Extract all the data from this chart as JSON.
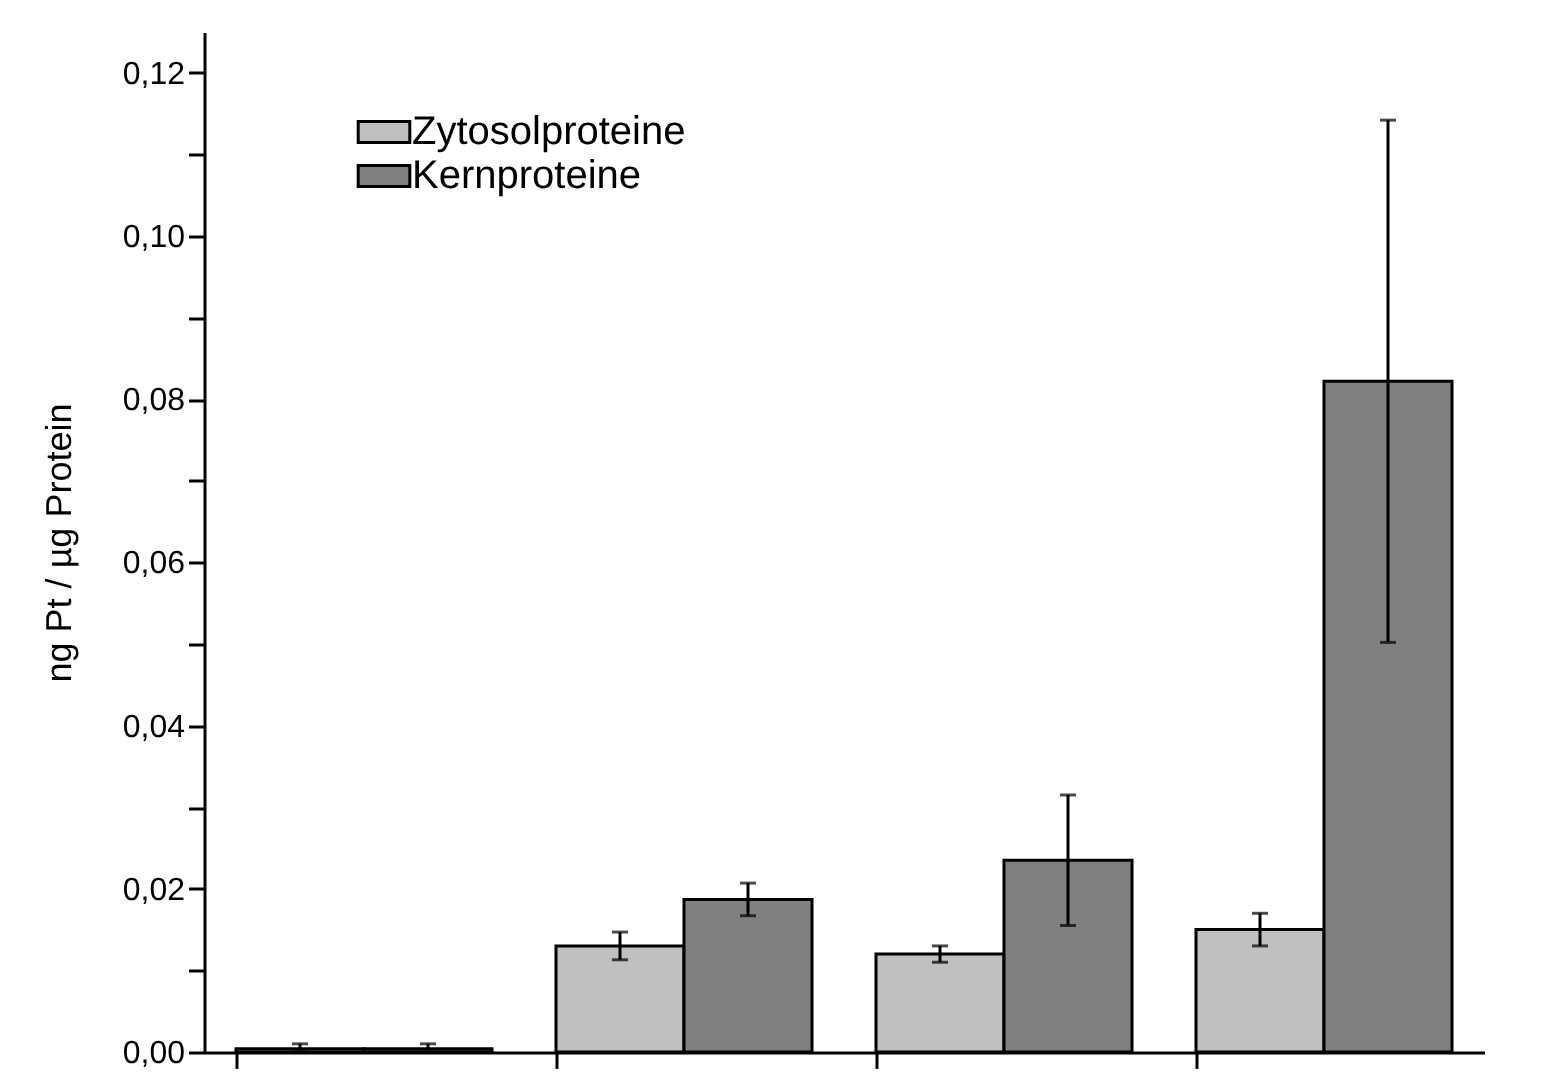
{
  "chart_data": {
    "type": "bar",
    "ylabel": "ng Pt / µg Protein",
    "categories": [
      null,
      null,
      null,
      null
    ],
    "series": [
      {
        "name": "Zytosolproteine",
        "color": "#c0c0c0",
        "values": [
          0.0004,
          0.013,
          0.012,
          0.015
        ],
        "errors": [
          [
            0,
            0.001
          ],
          0.0017,
          0.001,
          0.002
        ]
      },
      {
        "name": "Kernproteine",
        "color": "#808080",
        "values": [
          0.0004,
          0.0187,
          0.0235,
          0.0822
        ],
        "errors": [
          [
            0,
            0.001
          ],
          0.002,
          0.008,
          0.032
        ]
      }
    ],
    "ylim": [
      0,
      0.125
    ],
    "yticks": [
      {
        "value": 0,
        "label": "0,00"
      },
      {
        "value": 0.01,
        "label": null
      },
      {
        "value": 0.02,
        "label": "0,02"
      },
      {
        "value": 0.03,
        "label": null
      },
      {
        "value": 0.04,
        "label": "0,04"
      },
      {
        "value": 0.05,
        "label": null
      },
      {
        "value": 0.06,
        "label": "0,06"
      },
      {
        "value": 0.07,
        "label": null
      },
      {
        "value": 0.08,
        "label": "0,08"
      },
      {
        "value": 0.09,
        "label": null
      },
      {
        "value": 0.1,
        "label": "0,10"
      },
      {
        "value": 0.11,
        "label": null
      },
      {
        "value": 0.12,
        "label": "0,12"
      }
    ],
    "legend": "top left",
    "tick_labels": "y",
    "grid": false
  }
}
